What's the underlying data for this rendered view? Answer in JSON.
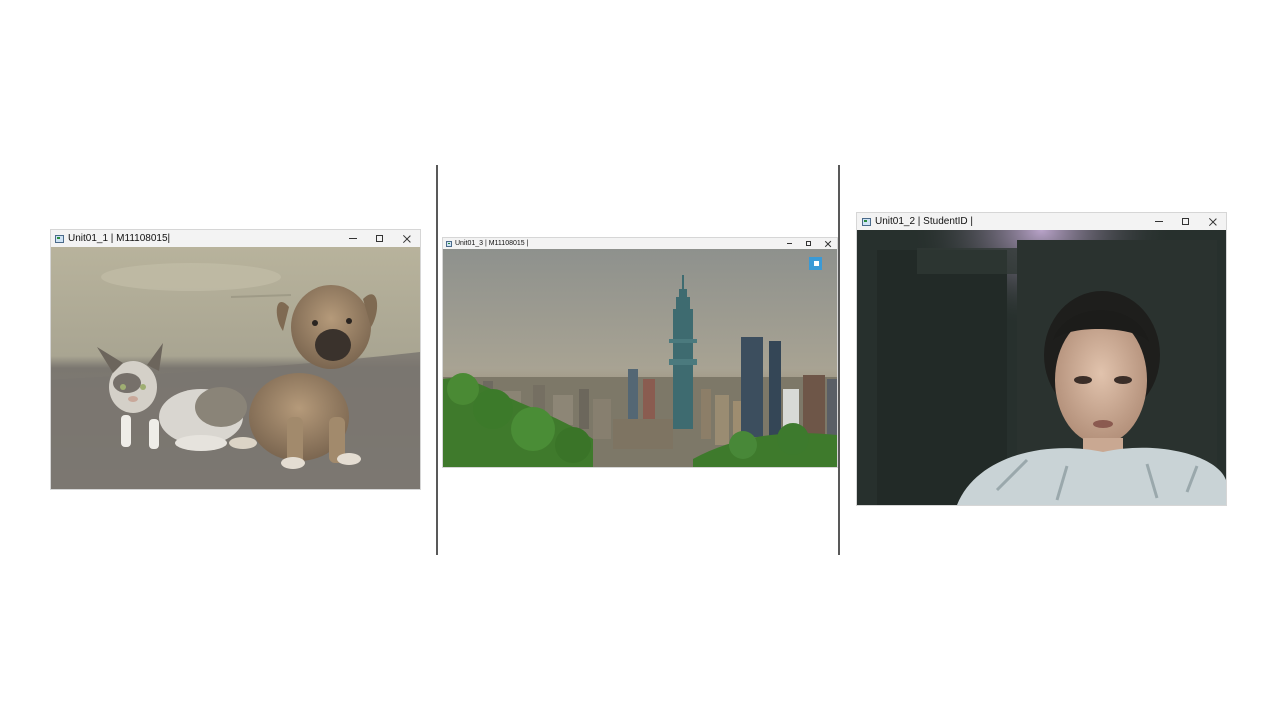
{
  "windows": [
    {
      "title": "Unit01_1 | M11108015|",
      "content": "photo-cat-and-puppy"
    },
    {
      "title": "Unit01_3 | M11108015 |",
      "content": "photo-taipei-skyline"
    },
    {
      "title": "Unit01_2 | StudentID |",
      "content": "webcam-feed-person"
    }
  ],
  "icons": {
    "minimize": "minimize-icon",
    "maximize": "maximize-icon",
    "close": "close-icon",
    "app": "opencv-window-icon"
  },
  "colors": {
    "divider": "#595959",
    "titlebar": "#f3f3f3",
    "background": "#ffffff"
  }
}
